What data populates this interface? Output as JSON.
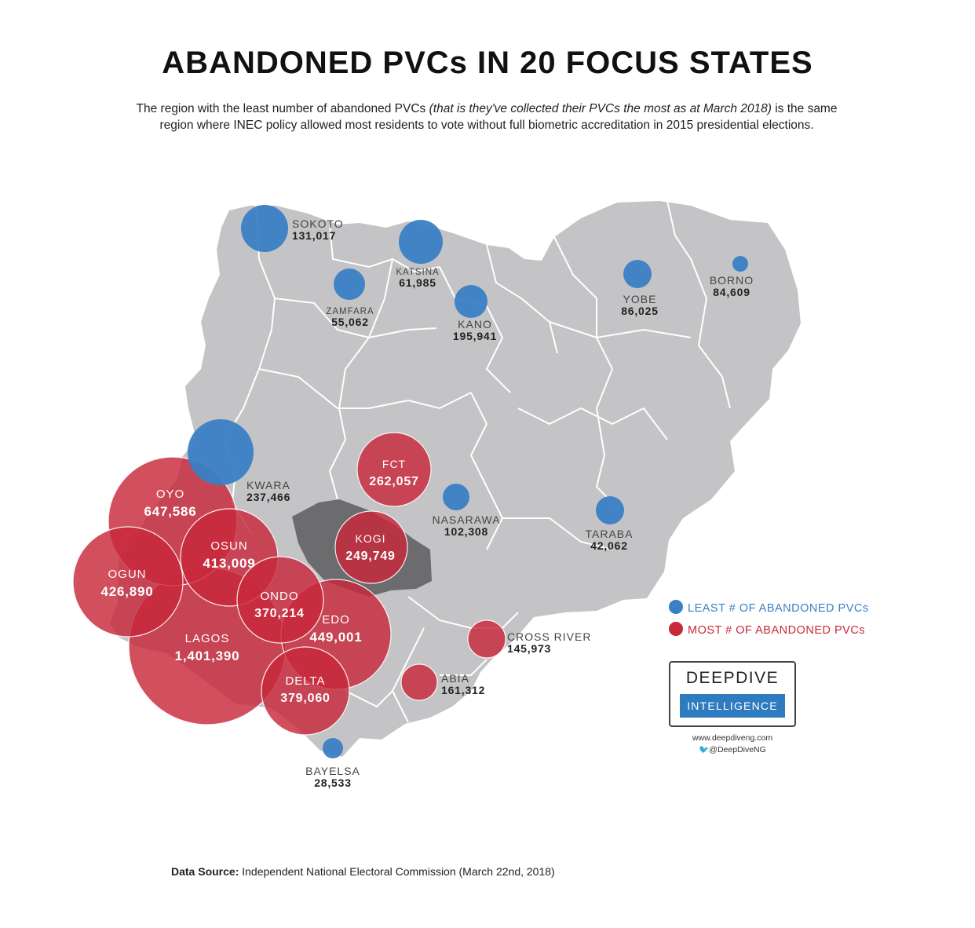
{
  "title": "ABANDONED PVCs IN 20 FOCUS STATES",
  "subtitle": {
    "part1": "The region with the least number of abandoned PVCs ",
    "italic": "(that is they've collected their PVCs the most as at March 2018)",
    "part2": " is the same region where INEC policy allowed most residents to vote without full biometric accreditation in 2015 presidential elections."
  },
  "colors": {
    "least": "#3a80c4",
    "most": "#c8283a",
    "land": "#c4c4c6",
    "land_dark": "#6c6c6e",
    "border": "#ffffff"
  },
  "legend": {
    "least_label": "LEAST # OF ABANDONED PVCs",
    "most_label": "MOST # OF ABANDONED PVCs"
  },
  "states": [
    {
      "name": "SOKOTO",
      "value": "131,017",
      "group": "least"
    },
    {
      "name": "KATSINA",
      "value": "61,985",
      "group": "least"
    },
    {
      "name": "ZAMFARA",
      "value": "55,062",
      "group": "least"
    },
    {
      "name": "KANO",
      "value": "195,941",
      "group": "least"
    },
    {
      "name": "YOBE",
      "value": "86,025",
      "group": "least"
    },
    {
      "name": "BORNO",
      "value": "84,609",
      "group": "least"
    },
    {
      "name": "KWARA",
      "value": "237,466",
      "group": "least"
    },
    {
      "name": "NASARAWA",
      "value": "102,308",
      "group": "least"
    },
    {
      "name": "TARABA",
      "value": "42,062",
      "group": "least"
    },
    {
      "name": "BAYELSA",
      "value": "28,533",
      "group": "least"
    },
    {
      "name": "FCT",
      "value": "262,057",
      "group": "most"
    },
    {
      "name": "OYO",
      "value": "647,586",
      "group": "most"
    },
    {
      "name": "OSUN",
      "value": "413,009",
      "group": "most"
    },
    {
      "name": "OGUN",
      "value": "426,890",
      "group": "most"
    },
    {
      "name": "KOGI",
      "value": "249,749",
      "group": "most"
    },
    {
      "name": "ONDO",
      "value": "370,214",
      "group": "most"
    },
    {
      "name": "EDO",
      "value": "449,001",
      "group": "most"
    },
    {
      "name": "LAGOS",
      "value": "1,401,390",
      "group": "most"
    },
    {
      "name": "DELTA",
      "value": "379,060",
      "group": "most"
    },
    {
      "name": "CROSS RIVER",
      "value": "145,973",
      "group": "most"
    },
    {
      "name": "ABIA",
      "value": "161,312",
      "group": "most"
    }
  ],
  "logo": {
    "line1": "DEEPDIVE",
    "line2": "INTELLIGENCE"
  },
  "social": {
    "website": "www.deepdiveng.com",
    "twitter": "@DeepDiveNG"
  },
  "source": {
    "label": "Data Source:",
    "text": " Independent National Electoral Commission (March 22nd, 2018)"
  }
}
